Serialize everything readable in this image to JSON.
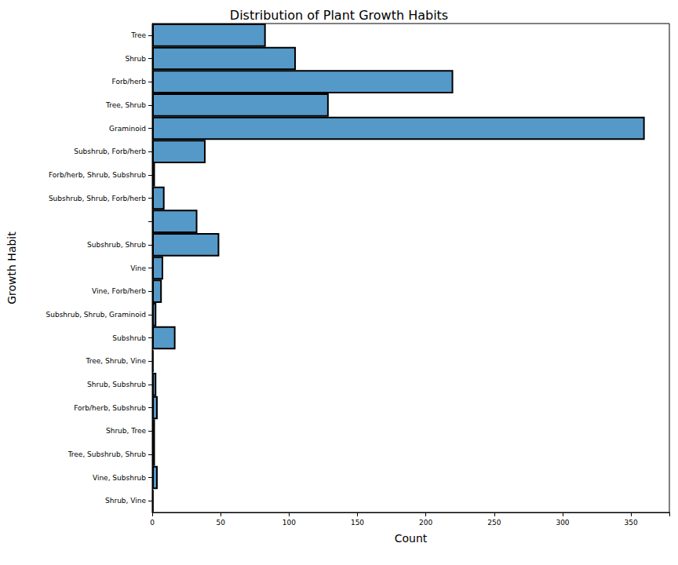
{
  "chart_data": {
    "type": "bar",
    "orientation": "horizontal",
    "title": "Distribution of Plant Growth Habits",
    "xlabel": "Count",
    "ylabel": "Growth Habit",
    "categories": [
      "Tree",
      "Shrub",
      "Forb/herb",
      "Tree, Shrub",
      "Graminoid",
      "Subshrub, Forb/herb",
      "Forb/herb, Shrub, Subshrub",
      "Subshrub, Shrub, Forb/herb",
      null,
      "Subshrub, Shrub",
      "Vine",
      "Vine, Forb/herb",
      "Subshrub, Shrub, Graminoid",
      "Subshrub",
      "Tree, Shrub, Vine",
      "Shrub, Subshrub",
      "Forb/herb, Subshrub",
      "Shrub, Tree",
      "Tree, Subshrub, Shrub",
      "Vine, Subshrub",
      "Shrub, Vine"
    ],
    "values": [
      83,
      105,
      220,
      129,
      360,
      39,
      2,
      9,
      33,
      49,
      8,
      7,
      3,
      17,
      1,
      3,
      4,
      2,
      2,
      4,
      1
    ],
    "color": "#5599c8",
    "xlim": [
      0,
      378
    ],
    "xticks": [
      0,
      50,
      100,
      150,
      200,
      250,
      300,
      350
    ],
    "grid": false
  }
}
